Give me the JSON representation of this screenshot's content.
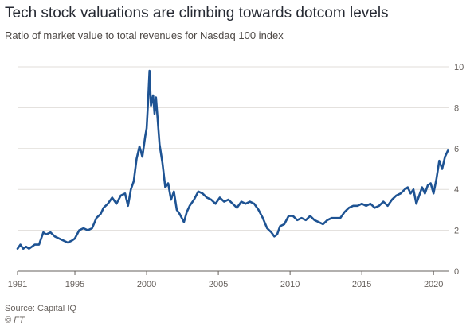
{
  "title": "Tech stock valuations are climbing towards dotcom levels",
  "subtitle": "Ratio of market value to total revenues for Nasdaq 100 index",
  "source": "Source: Capital IQ",
  "credit": "© FT",
  "colors": {
    "line": "#1e5393",
    "grid": "#e0ddd9",
    "axis": "#66605c",
    "text": "#66605c"
  },
  "chart_data": {
    "type": "line",
    "title": "Tech stock valuations are climbing towards dotcom levels",
    "subtitle": "Ratio of market value to total revenues for Nasdaq 100 index",
    "xlabel": "",
    "ylabel": "",
    "xlim": [
      1991,
      2021.1
    ],
    "ylim": [
      0,
      10
    ],
    "grid": true,
    "y_axis_side": "right",
    "x_ticks": [
      1991,
      1995,
      2000,
      2005,
      2010,
      2015,
      2020
    ],
    "y_ticks": [
      0,
      2,
      4,
      6,
      8,
      10
    ],
    "series": [
      {
        "name": "",
        "x": [
          1991.0,
          1991.2,
          1991.4,
          1991.6,
          1991.8,
          1992.0,
          1992.2,
          1992.5,
          1992.8,
          1993.0,
          1993.3,
          1993.6,
          1993.9,
          1994.2,
          1994.5,
          1994.8,
          1995.0,
          1995.3,
          1995.6,
          1995.9,
          1996.2,
          1996.5,
          1996.8,
          1997.0,
          1997.3,
          1997.6,
          1997.9,
          1998.2,
          1998.5,
          1998.7,
          1998.9,
          1999.1,
          1999.3,
          1999.5,
          1999.7,
          1999.9,
          2000.0,
          2000.1,
          2000.2,
          2000.3,
          2000.45,
          2000.55,
          2000.65,
          2000.75,
          2000.9,
          2001.1,
          2001.3,
          2001.5,
          2001.7,
          2001.9,
          2002.1,
          2002.3,
          2002.6,
          2002.8,
          2003.0,
          2003.3,
          2003.6,
          2003.9,
          2004.2,
          2004.5,
          2004.8,
          2005.1,
          2005.4,
          2005.7,
          2006.0,
          2006.3,
          2006.6,
          2006.9,
          2007.2,
          2007.5,
          2007.8,
          2008.1,
          2008.4,
          2008.7,
          2008.9,
          2009.1,
          2009.3,
          2009.6,
          2009.9,
          2010.2,
          2010.5,
          2010.8,
          2011.1,
          2011.4,
          2011.7,
          2012.0,
          2012.3,
          2012.6,
          2012.9,
          2013.2,
          2013.5,
          2013.8,
          2014.1,
          2014.4,
          2014.7,
          2015.0,
          2015.3,
          2015.6,
          2015.9,
          2016.2,
          2016.5,
          2016.8,
          2017.1,
          2017.4,
          2017.7,
          2018.0,
          2018.2,
          2018.4,
          2018.6,
          2018.8,
          2019.0,
          2019.2,
          2019.4,
          2019.6,
          2019.8,
          2020.0,
          2020.2,
          2020.4,
          2020.6,
          2020.8,
          2021.0
        ],
        "values": [
          1.1,
          1.3,
          1.1,
          1.2,
          1.1,
          1.2,
          1.3,
          1.3,
          1.9,
          1.8,
          1.9,
          1.7,
          1.6,
          1.5,
          1.4,
          1.5,
          1.6,
          2.0,
          2.1,
          2.0,
          2.1,
          2.6,
          2.8,
          3.1,
          3.3,
          3.6,
          3.3,
          3.7,
          3.8,
          3.2,
          4.0,
          4.4,
          5.5,
          6.1,
          5.6,
          6.6,
          7.0,
          8.3,
          9.8,
          8.1,
          8.6,
          7.7,
          8.5,
          7.6,
          6.2,
          5.3,
          4.1,
          4.3,
          3.5,
          3.9,
          3.0,
          2.8,
          2.4,
          2.9,
          3.2,
          3.5,
          3.9,
          3.8,
          3.6,
          3.5,
          3.3,
          3.6,
          3.4,
          3.5,
          3.3,
          3.1,
          3.4,
          3.3,
          3.4,
          3.3,
          3.0,
          2.6,
          2.1,
          1.9,
          1.7,
          1.8,
          2.2,
          2.3,
          2.7,
          2.7,
          2.5,
          2.6,
          2.5,
          2.7,
          2.5,
          2.4,
          2.3,
          2.5,
          2.6,
          2.6,
          2.6,
          2.9,
          3.1,
          3.2,
          3.2,
          3.3,
          3.2,
          3.3,
          3.1,
          3.2,
          3.4,
          3.2,
          3.5,
          3.7,
          3.8,
          4.0,
          4.1,
          3.8,
          4.0,
          3.3,
          3.7,
          4.1,
          3.8,
          4.2,
          4.3,
          3.8,
          4.5,
          5.4,
          5.0,
          5.6,
          5.9
        ]
      }
    ]
  }
}
